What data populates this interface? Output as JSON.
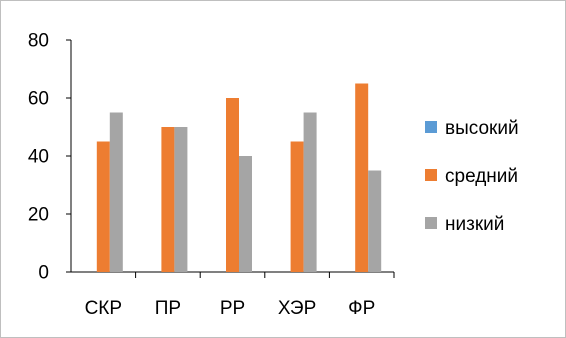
{
  "chart_data": {
    "type": "bar",
    "categories": [
      "СКР",
      "ПР",
      "РР",
      "ХЭР",
      "ФР"
    ],
    "series": [
      {
        "name": "высокий",
        "color": "#5b9bd5",
        "values": [
          0,
          0,
          0,
          0,
          0
        ]
      },
      {
        "name": "средний",
        "color": "#ed7d31",
        "values": [
          45,
          50,
          60,
          45,
          65
        ]
      },
      {
        "name": "низкий",
        "color": "#a5a5a5",
        "values": [
          55,
          50,
          40,
          55,
          35
        ]
      }
    ],
    "ylim": [
      0,
      80
    ],
    "yticks": [
      0,
      20,
      40,
      60,
      80
    ],
    "grid": false,
    "legend": "right"
  }
}
